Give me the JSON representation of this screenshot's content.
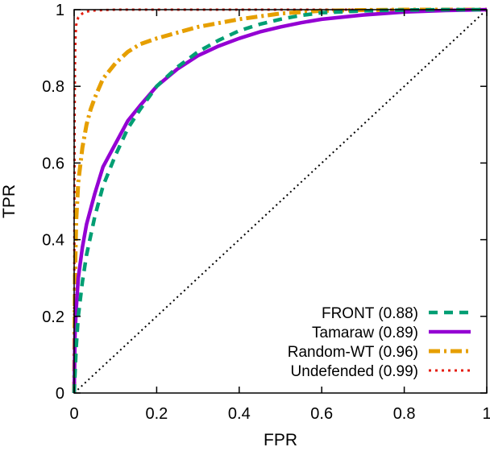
{
  "chart_data": {
    "type": "line",
    "title": "",
    "xlabel": "FPR",
    "ylabel": "TPR",
    "xlim": [
      0,
      1
    ],
    "ylim": [
      0,
      1
    ],
    "x_ticks": [
      "0",
      "0.2",
      "0.4",
      "0.6",
      "0.8",
      "1"
    ],
    "y_ticks": [
      "0",
      "0.2",
      "0.4",
      "0.6",
      "0.8",
      "1"
    ],
    "grid": false,
    "legend_position": "bottom-right",
    "diagonal_reference": true,
    "series": [
      {
        "name": "FRONT (0.88)",
        "color": "#009e73",
        "style": "dashed",
        "x": [
          0,
          0.005,
          0.01,
          0.02,
          0.03,
          0.05,
          0.07,
          0.1,
          0.13,
          0.16,
          0.2,
          0.25,
          0.3,
          0.35,
          0.4,
          0.45,
          0.5,
          0.55,
          0.6,
          0.7,
          0.8,
          0.9,
          1.0
        ],
        "y": [
          0,
          0.12,
          0.2,
          0.29,
          0.36,
          0.46,
          0.54,
          0.62,
          0.69,
          0.74,
          0.8,
          0.85,
          0.89,
          0.92,
          0.945,
          0.962,
          0.975,
          0.985,
          0.992,
          0.997,
          0.999,
          1.0,
          1.0
        ]
      },
      {
        "name": "Tamaraw (0.89)",
        "color": "#9400d3",
        "style": "solid",
        "x": [
          0,
          0.002,
          0.005,
          0.01,
          0.02,
          0.03,
          0.05,
          0.07,
          0.1,
          0.13,
          0.16,
          0.2,
          0.25,
          0.3,
          0.35,
          0.4,
          0.45,
          0.5,
          0.55,
          0.6,
          0.7,
          0.8,
          0.9,
          1.0
        ],
        "y": [
          0,
          0.15,
          0.22,
          0.3,
          0.38,
          0.44,
          0.52,
          0.59,
          0.65,
          0.71,
          0.75,
          0.8,
          0.845,
          0.88,
          0.905,
          0.925,
          0.942,
          0.955,
          0.966,
          0.975,
          0.986,
          0.994,
          0.998,
          1.0
        ]
      },
      {
        "name": "Random-WT (0.96)",
        "color": "#e69f00",
        "style": "dash-dot",
        "x": [
          0,
          0.002,
          0.005,
          0.01,
          0.02,
          0.03,
          0.04,
          0.05,
          0.07,
          0.1,
          0.13,
          0.16,
          0.2,
          0.25,
          0.3,
          0.35,
          0.4,
          0.5,
          0.6,
          0.7,
          0.8,
          1.0
        ],
        "y": [
          0,
          0.3,
          0.45,
          0.55,
          0.64,
          0.7,
          0.74,
          0.77,
          0.82,
          0.86,
          0.89,
          0.91,
          0.925,
          0.94,
          0.955,
          0.965,
          0.975,
          0.99,
          0.997,
          0.999,
          1.0,
          1.0
        ]
      },
      {
        "name": "Undefended (0.99)",
        "color": "#e51e10",
        "style": "dotted",
        "x": [
          0,
          0.001,
          0.002,
          0.003,
          0.005,
          0.01,
          0.02,
          0.03,
          0.05,
          0.1,
          0.2,
          0.4,
          0.7,
          1.0
        ],
        "y": [
          0,
          0.7,
          0.85,
          0.92,
          0.96,
          0.98,
          0.99,
          0.995,
          0.998,
          1.0,
          1.0,
          1.0,
          1.0,
          1.0
        ]
      }
    ]
  }
}
